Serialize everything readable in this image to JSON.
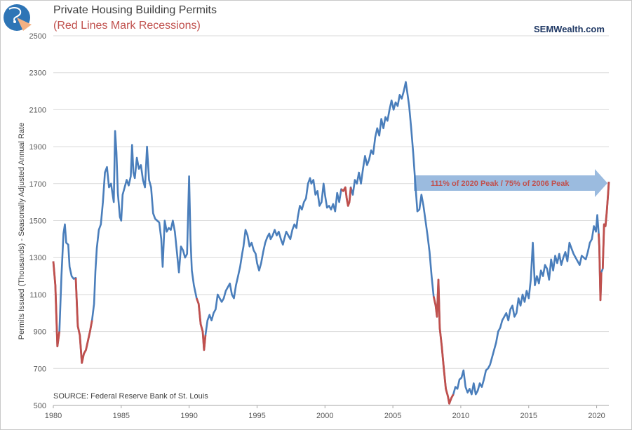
{
  "header": {
    "title": "Private Housing Building Permits",
    "subtitle": "(Red Lines Mark Recessions)",
    "brand": "SEMWealth.com"
  },
  "logo": {
    "icon": "sem-globe-logo-icon",
    "colors": [
      "#2e75b6",
      "#f4b183",
      "#ffffff"
    ]
  },
  "colors": {
    "series": "#4a7ebb",
    "recession": "#c0504d",
    "arrow": "#9bbbdf",
    "grid": "#d9d9d9"
  },
  "chart_data": {
    "type": "line",
    "title": "Private Housing Building Permits",
    "subtitle": "(Red Lines Mark Recessions)",
    "ylabel": "Permits Issued (Thousands) - Seasonally Adjusted Annual Rate",
    "xlabel": "",
    "ylim": [
      500,
      2500
    ],
    "xlim": [
      1980,
      2020.9
    ],
    "yticks": [
      500,
      700,
      900,
      1100,
      1300,
      1500,
      1700,
      1900,
      2100,
      2300,
      2500
    ],
    "xticks": [
      1980,
      1985,
      1990,
      1995,
      2000,
      2005,
      2010,
      2015,
      2020
    ],
    "grid": true,
    "legend": "none",
    "source": "SOURCE:   Federal Reserve Bank of St. Louis",
    "annotation": "111% of 2020 Peak / 75% of 2006 Peak",
    "recessions": [
      [
        1980.0,
        1980.55
      ],
      [
        1981.55,
        1982.9
      ],
      [
        1990.55,
        1991.2
      ],
      [
        2001.2,
        2001.9
      ],
      [
        2007.95,
        2009.5
      ],
      [
        2020.15,
        2020.4
      ],
      [
        2020.4,
        2020.9
      ]
    ],
    "series": [
      {
        "points": [
          [
            1980.0,
            1280
          ],
          [
            1980.15,
            1150
          ],
          [
            1980.3,
            820
          ],
          [
            1980.45,
            900
          ],
          [
            1980.6,
            1200
          ],
          [
            1980.75,
            1430
          ],
          [
            1980.85,
            1480
          ],
          [
            1980.95,
            1380
          ],
          [
            1981.1,
            1370
          ],
          [
            1981.2,
            1250
          ],
          [
            1981.35,
            1200
          ],
          [
            1981.5,
            1185
          ],
          [
            1981.65,
            1190
          ],
          [
            1981.8,
            930
          ],
          [
            1981.95,
            880
          ],
          [
            1982.1,
            730
          ],
          [
            1982.25,
            780
          ],
          [
            1982.4,
            800
          ],
          [
            1982.55,
            850
          ],
          [
            1982.7,
            900
          ],
          [
            1982.85,
            960
          ],
          [
            1983.0,
            1050
          ],
          [
            1983.1,
            1225
          ],
          [
            1983.2,
            1350
          ],
          [
            1983.35,
            1450
          ],
          [
            1983.5,
            1480
          ],
          [
            1983.65,
            1600
          ],
          [
            1983.8,
            1760
          ],
          [
            1983.95,
            1790
          ],
          [
            1984.1,
            1680
          ],
          [
            1984.25,
            1700
          ],
          [
            1984.35,
            1650
          ],
          [
            1984.45,
            1600
          ],
          [
            1984.55,
            1985
          ],
          [
            1984.65,
            1870
          ],
          [
            1984.75,
            1650
          ],
          [
            1984.9,
            1520
          ],
          [
            1985.0,
            1500
          ],
          [
            1985.1,
            1640
          ],
          [
            1985.25,
            1680
          ],
          [
            1985.4,
            1720
          ],
          [
            1985.55,
            1690
          ],
          [
            1985.7,
            1740
          ],
          [
            1985.8,
            1910
          ],
          [
            1985.9,
            1760
          ],
          [
            1986.0,
            1730
          ],
          [
            1986.15,
            1840
          ],
          [
            1986.3,
            1780
          ],
          [
            1986.45,
            1800
          ],
          [
            1986.6,
            1720
          ],
          [
            1986.75,
            1680
          ],
          [
            1986.9,
            1900
          ],
          [
            1987.05,
            1720
          ],
          [
            1987.2,
            1680
          ],
          [
            1987.35,
            1540
          ],
          [
            1987.5,
            1510
          ],
          [
            1987.65,
            1500
          ],
          [
            1987.8,
            1490
          ],
          [
            1987.95,
            1400
          ],
          [
            1988.05,
            1250
          ],
          [
            1988.2,
            1500
          ],
          [
            1988.35,
            1440
          ],
          [
            1988.5,
            1460
          ],
          [
            1988.65,
            1450
          ],
          [
            1988.8,
            1500
          ],
          [
            1988.95,
            1440
          ],
          [
            1989.1,
            1330
          ],
          [
            1989.25,
            1220
          ],
          [
            1989.4,
            1360
          ],
          [
            1989.55,
            1340
          ],
          [
            1989.7,
            1300
          ],
          [
            1989.85,
            1320
          ],
          [
            1990.0,
            1740
          ],
          [
            1990.1,
            1400
          ],
          [
            1990.2,
            1230
          ],
          [
            1990.35,
            1150
          ],
          [
            1990.55,
            1080
          ],
          [
            1990.7,
            1050
          ],
          [
            1990.85,
            940
          ],
          [
            1991.0,
            900
          ],
          [
            1991.1,
            800
          ],
          [
            1991.2,
            880
          ],
          [
            1991.35,
            960
          ],
          [
            1991.5,
            990
          ],
          [
            1991.65,
            960
          ],
          [
            1991.8,
            1000
          ],
          [
            1991.95,
            1020
          ],
          [
            1992.1,
            1100
          ],
          [
            1992.25,
            1080
          ],
          [
            1992.4,
            1060
          ],
          [
            1992.55,
            1080
          ],
          [
            1992.7,
            1120
          ],
          [
            1992.85,
            1140
          ],
          [
            1993.0,
            1160
          ],
          [
            1993.15,
            1100
          ],
          [
            1993.3,
            1080
          ],
          [
            1993.45,
            1150
          ],
          [
            1993.6,
            1200
          ],
          [
            1993.75,
            1250
          ],
          [
            1993.9,
            1320
          ],
          [
            1994.0,
            1360
          ],
          [
            1994.15,
            1450
          ],
          [
            1994.3,
            1420
          ],
          [
            1994.45,
            1360
          ],
          [
            1994.6,
            1380
          ],
          [
            1994.75,
            1340
          ],
          [
            1994.9,
            1320
          ],
          [
            1995.0,
            1270
          ],
          [
            1995.15,
            1230
          ],
          [
            1995.3,
            1270
          ],
          [
            1995.45,
            1330
          ],
          [
            1995.6,
            1380
          ],
          [
            1995.75,
            1410
          ],
          [
            1995.9,
            1430
          ],
          [
            1996.0,
            1400
          ],
          [
            1996.15,
            1420
          ],
          [
            1996.3,
            1450
          ],
          [
            1996.45,
            1420
          ],
          [
            1996.6,
            1440
          ],
          [
            1996.75,
            1400
          ],
          [
            1996.9,
            1370
          ],
          [
            1997.0,
            1400
          ],
          [
            1997.15,
            1440
          ],
          [
            1997.3,
            1420
          ],
          [
            1997.45,
            1400
          ],
          [
            1997.6,
            1450
          ],
          [
            1997.75,
            1480
          ],
          [
            1997.9,
            1460
          ],
          [
            1998.0,
            1520
          ],
          [
            1998.15,
            1580
          ],
          [
            1998.3,
            1560
          ],
          [
            1998.45,
            1600
          ],
          [
            1998.6,
            1620
          ],
          [
            1998.75,
            1700
          ],
          [
            1998.9,
            1730
          ],
          [
            1999.0,
            1700
          ],
          [
            1999.15,
            1720
          ],
          [
            1999.3,
            1640
          ],
          [
            1999.45,
            1660
          ],
          [
            1999.6,
            1580
          ],
          [
            1999.75,
            1600
          ],
          [
            1999.9,
            1700
          ],
          [
            2000.0,
            1640
          ],
          [
            2000.15,
            1570
          ],
          [
            2000.3,
            1580
          ],
          [
            2000.45,
            1560
          ],
          [
            2000.6,
            1590
          ],
          [
            2000.75,
            1550
          ],
          [
            2000.9,
            1650
          ],
          [
            2001.05,
            1600
          ],
          [
            2001.2,
            1670
          ],
          [
            2001.35,
            1660
          ],
          [
            2001.5,
            1680
          ],
          [
            2001.6,
            1620
          ],
          [
            2001.7,
            1580
          ],
          [
            2001.8,
            1600
          ],
          [
            2001.9,
            1680
          ],
          [
            2002.05,
            1640
          ],
          [
            2002.2,
            1720
          ],
          [
            2002.35,
            1700
          ],
          [
            2002.5,
            1760
          ],
          [
            2002.65,
            1700
          ],
          [
            2002.8,
            1780
          ],
          [
            2002.95,
            1850
          ],
          [
            2003.1,
            1800
          ],
          [
            2003.25,
            1830
          ],
          [
            2003.4,
            1880
          ],
          [
            2003.55,
            1860
          ],
          [
            2003.7,
            1950
          ],
          [
            2003.85,
            2000
          ],
          [
            2004.0,
            1960
          ],
          [
            2004.15,
            2050
          ],
          [
            2004.3,
            2000
          ],
          [
            2004.45,
            2060
          ],
          [
            2004.6,
            2040
          ],
          [
            2004.75,
            2100
          ],
          [
            2004.9,
            2150
          ],
          [
            2005.05,
            2100
          ],
          [
            2005.2,
            2140
          ],
          [
            2005.35,
            2120
          ],
          [
            2005.5,
            2180
          ],
          [
            2005.65,
            2160
          ],
          [
            2005.8,
            2200
          ],
          [
            2005.95,
            2250
          ],
          [
            2006.05,
            2200
          ],
          [
            2006.2,
            2120
          ],
          [
            2006.35,
            2000
          ],
          [
            2006.5,
            1860
          ],
          [
            2006.65,
            1700
          ],
          [
            2006.8,
            1550
          ],
          [
            2006.95,
            1560
          ],
          [
            2007.1,
            1640
          ],
          [
            2007.25,
            1580
          ],
          [
            2007.4,
            1500
          ],
          [
            2007.55,
            1420
          ],
          [
            2007.7,
            1330
          ],
          [
            2007.85,
            1200
          ],
          [
            2008.0,
            1090
          ],
          [
            2008.15,
            1040
          ],
          [
            2008.25,
            980
          ],
          [
            2008.35,
            1180
          ],
          [
            2008.45,
            920
          ],
          [
            2008.6,
            820
          ],
          [
            2008.75,
            700
          ],
          [
            2008.9,
            590
          ],
          [
            2009.05,
            550
          ],
          [
            2009.15,
            510
          ],
          [
            2009.3,
            540
          ],
          [
            2009.45,
            560
          ],
          [
            2009.6,
            600
          ],
          [
            2009.75,
            590
          ],
          [
            2009.9,
            640
          ],
          [
            2010.05,
            650
          ],
          [
            2010.2,
            690
          ],
          [
            2010.35,
            600
          ],
          [
            2010.5,
            570
          ],
          [
            2010.65,
            590
          ],
          [
            2010.8,
            560
          ],
          [
            2010.95,
            620
          ],
          [
            2011.1,
            560
          ],
          [
            2011.25,
            580
          ],
          [
            2011.4,
            620
          ],
          [
            2011.55,
            600
          ],
          [
            2011.7,
            640
          ],
          [
            2011.85,
            690
          ],
          [
            2012.0,
            700
          ],
          [
            2012.15,
            720
          ],
          [
            2012.3,
            760
          ],
          [
            2012.45,
            800
          ],
          [
            2012.6,
            840
          ],
          [
            2012.75,
            900
          ],
          [
            2012.9,
            920
          ],
          [
            2013.05,
            960
          ],
          [
            2013.2,
            980
          ],
          [
            2013.35,
            1000
          ],
          [
            2013.5,
            960
          ],
          [
            2013.65,
            1020
          ],
          [
            2013.8,
            1040
          ],
          [
            2013.95,
            980
          ],
          [
            2014.1,
            1000
          ],
          [
            2014.25,
            1080
          ],
          [
            2014.4,
            1040
          ],
          [
            2014.55,
            1100
          ],
          [
            2014.7,
            1060
          ],
          [
            2014.85,
            1120
          ],
          [
            2015.0,
            1080
          ],
          [
            2015.15,
            1180
          ],
          [
            2015.3,
            1380
          ],
          [
            2015.45,
            1150
          ],
          [
            2015.6,
            1200
          ],
          [
            2015.75,
            1160
          ],
          [
            2015.9,
            1230
          ],
          [
            2016.05,
            1200
          ],
          [
            2016.2,
            1260
          ],
          [
            2016.35,
            1240
          ],
          [
            2016.5,
            1180
          ],
          [
            2016.65,
            1290
          ],
          [
            2016.8,
            1230
          ],
          [
            2016.95,
            1310
          ],
          [
            2017.1,
            1270
          ],
          [
            2017.25,
            1320
          ],
          [
            2017.4,
            1260
          ],
          [
            2017.55,
            1300
          ],
          [
            2017.7,
            1330
          ],
          [
            2017.85,
            1280
          ],
          [
            2018.0,
            1380
          ],
          [
            2018.15,
            1350
          ],
          [
            2018.3,
            1320
          ],
          [
            2018.45,
            1300
          ],
          [
            2018.6,
            1280
          ],
          [
            2018.75,
            1260
          ],
          [
            2018.9,
            1310
          ],
          [
            2019.05,
            1300
          ],
          [
            2019.2,
            1290
          ],
          [
            2019.35,
            1330
          ],
          [
            2019.5,
            1380
          ],
          [
            2019.65,
            1400
          ],
          [
            2019.8,
            1470
          ],
          [
            2019.95,
            1440
          ],
          [
            2020.05,
            1530
          ],
          [
            2020.15,
            1430
          ],
          [
            2020.2,
            1360
          ],
          [
            2020.28,
            1070
          ],
          [
            2020.35,
            1220
          ],
          [
            2020.45,
            1240
          ],
          [
            2020.55,
            1480
          ],
          [
            2020.65,
            1470
          ],
          [
            2020.75,
            1550
          ],
          [
            2020.85,
            1650
          ],
          [
            2020.9,
            1710
          ]
        ]
      }
    ]
  }
}
